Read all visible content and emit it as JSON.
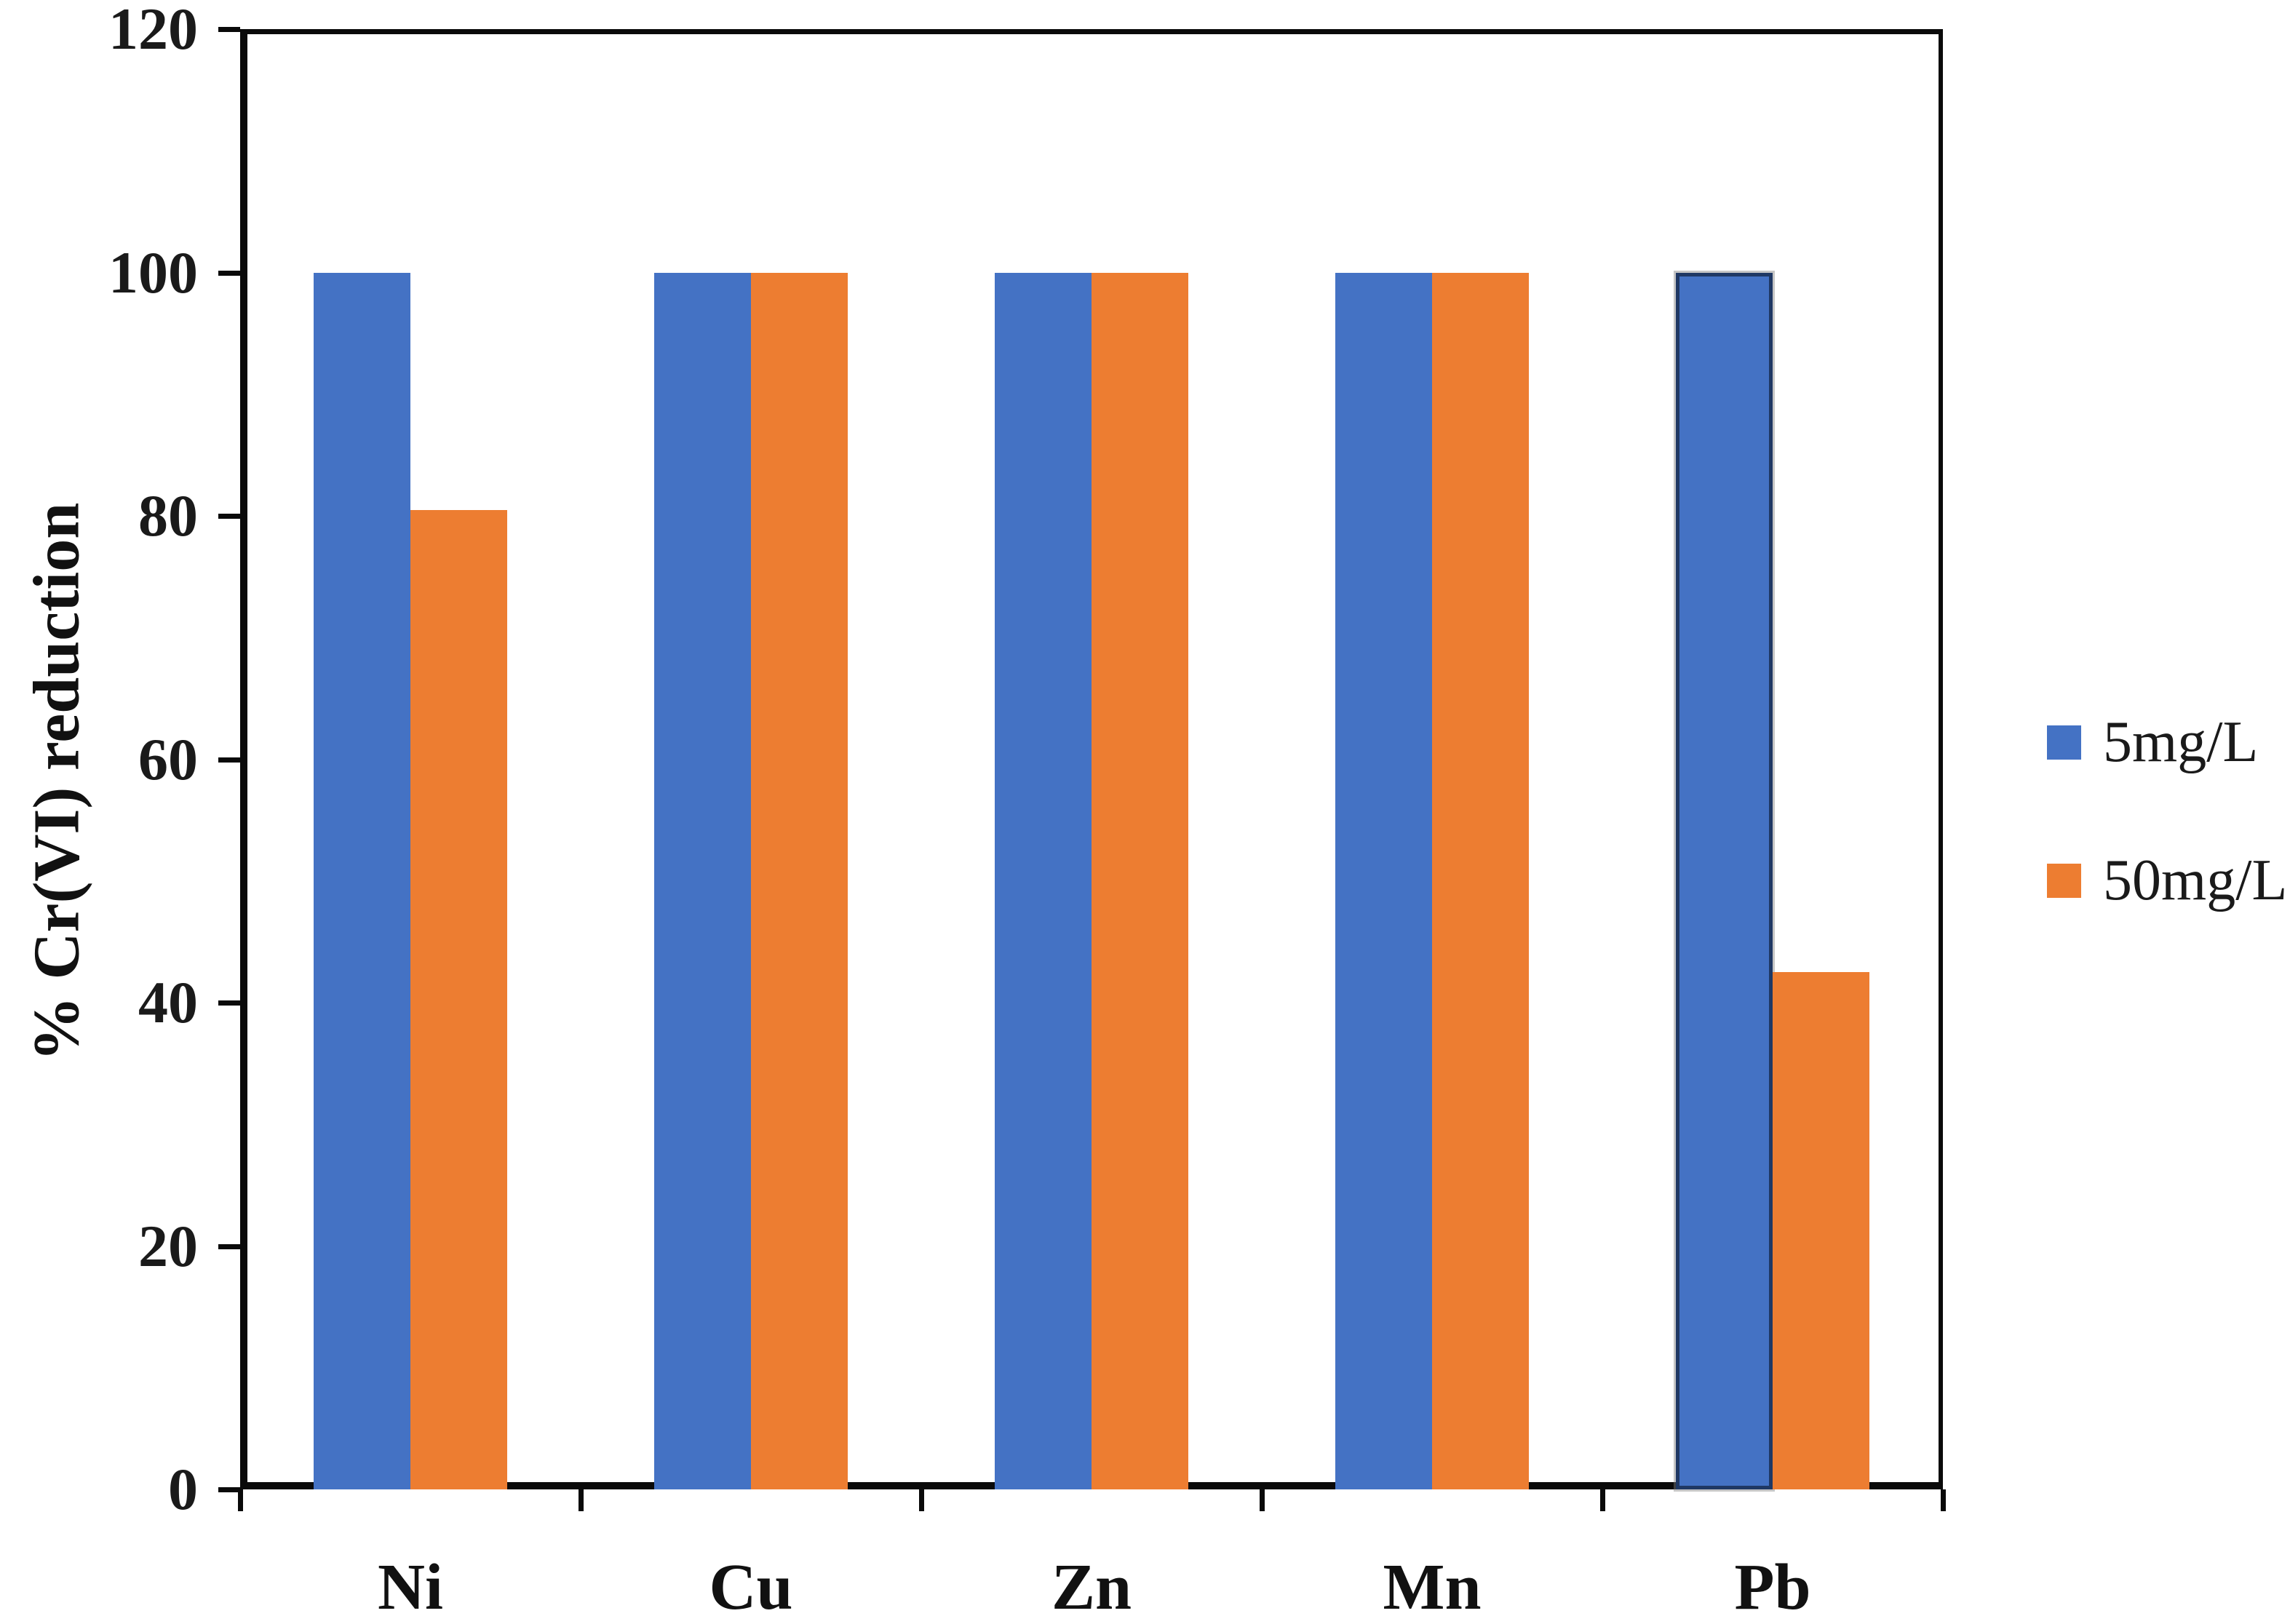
{
  "figure": {
    "background_color": "#FFFFFF",
    "plot_border_color": "#0A0A0A"
  },
  "chart_data": {
    "type": "bar",
    "title": "",
    "xlabel": "",
    "ylabel": "% Cr(VI) reduction",
    "categories": [
      "Ni",
      "Cu",
      "Zn",
      "Mn",
      "Pb"
    ],
    "series": [
      {
        "name": "5mg/L",
        "color": "#4472C4",
        "values": [
          100,
          100,
          100,
          100,
          100
        ]
      },
      {
        "name": "50mg/L",
        "color": "#ED7D31",
        "values": [
          80.5,
          100,
          100,
          100,
          42.5
        ]
      }
    ],
    "ylim": [
      0,
      120
    ],
    "yticks": [
      0,
      20,
      40,
      60,
      80,
      100,
      120
    ],
    "grid": false,
    "legend_position": "right-middle",
    "bar_outline": {
      "category": "Pb",
      "series": "5mg/L",
      "color": "#1F3864"
    }
  }
}
